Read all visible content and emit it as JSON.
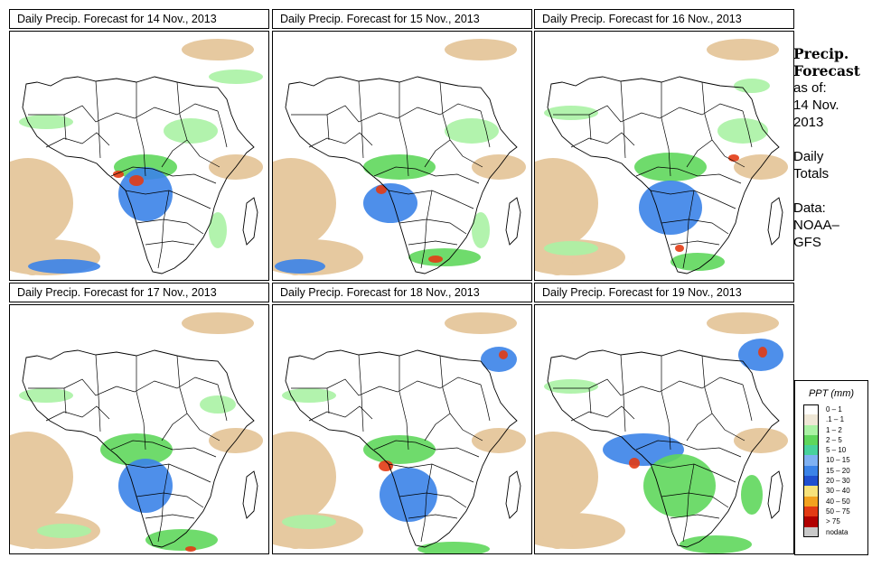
{
  "panels": [
    {
      "title": "Daily Precip. Forecast for  14 Nov., 2013"
    },
    {
      "title": "Daily Precip. Forecast for  15 Nov., 2013"
    },
    {
      "title": "Daily Precip. Forecast for  16 Nov., 2013"
    },
    {
      "title": "Daily Precip. Forecast for  17 Nov., 2013"
    },
    {
      "title": "Daily Precip. Forecast for  18 Nov., 2013"
    },
    {
      "title": "Daily Precip. Forecast for  19 Nov., 2013"
    }
  ],
  "side": {
    "title_line1": "Precip.",
    "title_line2": "Forecast",
    "asof_label": "as of:",
    "date_line1": "14 Nov.",
    "date_line2": "2013",
    "totals_line1": "Daily",
    "totals_line2": "Totals",
    "data_line1": "Data:",
    "data_line2": "NOAA–",
    "data_line3": "GFS"
  },
  "legend": {
    "title": "PPT (mm)",
    "items": [
      {
        "label": "0 – 1",
        "color": "#ffffff"
      },
      {
        "label": ".1 – 1",
        "color": "#efe7d6"
      },
      {
        "label": "1 – 2",
        "color": "#aaf2a4"
      },
      {
        "label": "2 – 5",
        "color": "#5fd75c"
      },
      {
        "label": "5 – 10",
        "color": "#48d29c"
      },
      {
        "label": "10 – 15",
        "color": "#7fb1f2"
      },
      {
        "label": "15 – 20",
        "color": "#3b83e8"
      },
      {
        "label": "20 – 30",
        "color": "#1f4fd0"
      },
      {
        "label": "30 – 40",
        "color": "#f7e27a"
      },
      {
        "label": "40 – 50",
        "color": "#f3a21f"
      },
      {
        "label": "50 – 75",
        "color": "#e33b14"
      },
      {
        "label": "> 75",
        "color": "#b10000"
      },
      {
        "label": "nodata",
        "color": "#c8c8c8"
      }
    ]
  },
  "colors": {
    "desert": "#e6c9a0",
    "light_rain": "#aaf2a4",
    "moderate_rain": "#5fd75c",
    "heavy_rain": "#3b83e8",
    "very_heavy_rain": "#e33b14",
    "boundary": "#000000"
  }
}
